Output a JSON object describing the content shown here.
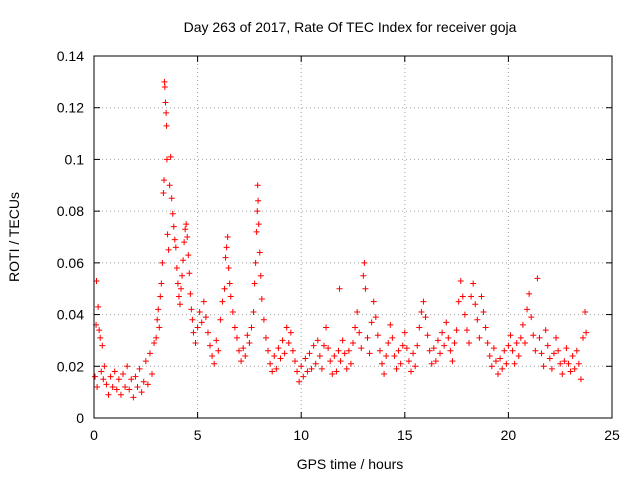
{
  "chart_data": {
    "type": "scatter",
    "title": "Day 263 of 2017, Rate Of TEC Index for receiver goja",
    "xlabel": "GPS time / hours",
    "ylabel": "ROTI / TECUs",
    "xlim": [
      0,
      25
    ],
    "ylim": [
      0,
      0.14
    ],
    "xticks": [
      0,
      5,
      10,
      15,
      20,
      25
    ],
    "xtick_labels": [
      "0",
      "5",
      "10",
      "15",
      "20",
      "25"
    ],
    "yticks": [
      0,
      0.02,
      0.04,
      0.06,
      0.08,
      0.1,
      0.12,
      0.14
    ],
    "ytick_labels": [
      "0",
      "0.02",
      "0.04",
      "0.06",
      "0.08",
      "0.1",
      "0.12",
      "0.14"
    ],
    "grid": true,
    "marker": "plus",
    "color": "#ff0000",
    "series": [
      {
        "points": [
          [
            0.05,
            0.016
          ],
          [
            0.1,
            0.036
          ],
          [
            0.12,
            0.053
          ],
          [
            0.15,
            0.012
          ],
          [
            0.2,
            0.043
          ],
          [
            0.25,
            0.034
          ],
          [
            0.3,
            0.031
          ],
          [
            0.35,
            0.018
          ],
          [
            0.4,
            0.028
          ],
          [
            0.45,
            0.015
          ],
          [
            0.5,
            0.02
          ],
          [
            0.6,
            0.013
          ],
          [
            0.7,
            0.009
          ],
          [
            0.8,
            0.016
          ],
          [
            0.9,
            0.012
          ],
          [
            1.0,
            0.018
          ],
          [
            1.1,
            0.011
          ],
          [
            1.2,
            0.015
          ],
          [
            1.3,
            0.009
          ],
          [
            1.4,
            0.017
          ],
          [
            1.5,
            0.012
          ],
          [
            1.6,
            0.02
          ],
          [
            1.7,
            0.011
          ],
          [
            1.8,
            0.015
          ],
          [
            1.9,
            0.008
          ],
          [
            2.0,
            0.016
          ],
          [
            2.1,
            0.012
          ],
          [
            2.2,
            0.019
          ],
          [
            2.3,
            0.01
          ],
          [
            2.4,
            0.014
          ],
          [
            2.5,
            0.022
          ],
          [
            2.6,
            0.013
          ],
          [
            2.7,
            0.025
          ],
          [
            2.8,
            0.017
          ],
          [
            2.9,
            0.029
          ],
          [
            3.0,
            0.031
          ],
          [
            3.05,
            0.038
          ],
          [
            3.1,
            0.042
          ],
          [
            3.15,
            0.035
          ],
          [
            3.2,
            0.047
          ],
          [
            3.25,
            0.052
          ],
          [
            3.3,
            0.06
          ],
          [
            3.35,
            0.087
          ],
          [
            3.38,
            0.092
          ],
          [
            3.4,
            0.13
          ],
          [
            3.42,
            0.128
          ],
          [
            3.45,
            0.122
          ],
          [
            3.48,
            0.118
          ],
          [
            3.5,
            0.113
          ],
          [
            3.52,
            0.1
          ],
          [
            3.55,
            0.071
          ],
          [
            3.6,
            0.065
          ],
          [
            3.65,
            0.09
          ],
          [
            3.7,
            0.101
          ],
          [
            3.75,
            0.085
          ],
          [
            3.8,
            0.079
          ],
          [
            3.85,
            0.074
          ],
          [
            3.9,
            0.069
          ],
          [
            3.95,
            0.066
          ],
          [
            4.0,
            0.058
          ],
          [
            4.05,
            0.052
          ],
          [
            4.1,
            0.047
          ],
          [
            4.15,
            0.044
          ],
          [
            4.2,
            0.05
          ],
          [
            4.25,
            0.055
          ],
          [
            4.3,
            0.061
          ],
          [
            4.35,
            0.068
          ],
          [
            4.4,
            0.073
          ],
          [
            4.45,
            0.075
          ],
          [
            4.5,
            0.07
          ],
          [
            4.55,
            0.063
          ],
          [
            4.6,
            0.056
          ],
          [
            4.65,
            0.048
          ],
          [
            4.7,
            0.042
          ],
          [
            4.75,
            0.038
          ],
          [
            4.8,
            0.033
          ],
          [
            4.9,
            0.029
          ],
          [
            5.0,
            0.035
          ],
          [
            5.1,
            0.041
          ],
          [
            5.2,
            0.037
          ],
          [
            5.3,
            0.045
          ],
          [
            5.4,
            0.039
          ],
          [
            5.5,
            0.033
          ],
          [
            5.6,
            0.028
          ],
          [
            5.7,
            0.024
          ],
          [
            5.8,
            0.021
          ],
          [
            5.9,
            0.03
          ],
          [
            6.0,
            0.026
          ],
          [
            6.1,
            0.038
          ],
          [
            6.2,
            0.045
          ],
          [
            6.3,
            0.05
          ],
          [
            6.35,
            0.062
          ],
          [
            6.4,
            0.066
          ],
          [
            6.45,
            0.07
          ],
          [
            6.5,
            0.058
          ],
          [
            6.55,
            0.052
          ],
          [
            6.6,
            0.047
          ],
          [
            6.7,
            0.041
          ],
          [
            6.8,
            0.035
          ],
          [
            6.9,
            0.031
          ],
          [
            7.0,
            0.026
          ],
          [
            7.1,
            0.022
          ],
          [
            7.2,
            0.027
          ],
          [
            7.3,
            0.024
          ],
          [
            7.4,
            0.032
          ],
          [
            7.5,
            0.029
          ],
          [
            7.6,
            0.035
          ],
          [
            7.7,
            0.041
          ],
          [
            7.75,
            0.052
          ],
          [
            7.8,
            0.06
          ],
          [
            7.85,
            0.072
          ],
          [
            7.88,
            0.08
          ],
          [
            7.9,
            0.09
          ],
          [
            7.92,
            0.084
          ],
          [
            7.95,
            0.075
          ],
          [
            8.0,
            0.064
          ],
          [
            8.05,
            0.055
          ],
          [
            8.1,
            0.046
          ],
          [
            8.2,
            0.038
          ],
          [
            8.3,
            0.031
          ],
          [
            8.4,
            0.026
          ],
          [
            8.5,
            0.021
          ],
          [
            8.6,
            0.018
          ],
          [
            8.7,
            0.024
          ],
          [
            8.8,
            0.019
          ],
          [
            8.9,
            0.027
          ],
          [
            9.0,
            0.023
          ],
          [
            9.1,
            0.03
          ],
          [
            9.2,
            0.025
          ],
          [
            9.3,
            0.035
          ],
          [
            9.4,
            0.029
          ],
          [
            9.5,
            0.033
          ],
          [
            9.6,
            0.026
          ],
          [
            9.7,
            0.022
          ],
          [
            9.8,
            0.018
          ],
          [
            9.9,
            0.014
          ],
          [
            10.0,
            0.02
          ],
          [
            10.1,
            0.016
          ],
          [
            10.2,
            0.023
          ],
          [
            10.3,
            0.018
          ],
          [
            10.4,
            0.025
          ],
          [
            10.5,
            0.019
          ],
          [
            10.6,
            0.028
          ],
          [
            10.7,
            0.021
          ],
          [
            10.8,
            0.03
          ],
          [
            10.9,
            0.024
          ],
          [
            11.0,
            0.019
          ],
          [
            11.1,
            0.028
          ],
          [
            11.2,
            0.035
          ],
          [
            11.3,
            0.027
          ],
          [
            11.4,
            0.022
          ],
          [
            11.5,
            0.017
          ],
          [
            11.6,
            0.024
          ],
          [
            11.7,
            0.018
          ],
          [
            11.8,
            0.026
          ],
          [
            11.85,
            0.05
          ],
          [
            11.9,
            0.022
          ],
          [
            12.0,
            0.03
          ],
          [
            12.1,
            0.025
          ],
          [
            12.2,
            0.019
          ],
          [
            12.3,
            0.026
          ],
          [
            12.4,
            0.021
          ],
          [
            12.5,
            0.029
          ],
          [
            12.6,
            0.035
          ],
          [
            12.7,
            0.041
          ],
          [
            12.8,
            0.033
          ],
          [
            12.9,
            0.027
          ],
          [
            13.0,
            0.055
          ],
          [
            13.05,
            0.06
          ],
          [
            13.1,
            0.05
          ],
          [
            13.2,
            0.031
          ],
          [
            13.3,
            0.025
          ],
          [
            13.4,
            0.037
          ],
          [
            13.5,
            0.045
          ],
          [
            13.6,
            0.039
          ],
          [
            13.7,
            0.032
          ],
          [
            13.8,
            0.026
          ],
          [
            13.9,
            0.021
          ],
          [
            14.0,
            0.017
          ],
          [
            14.1,
            0.024
          ],
          [
            14.2,
            0.029
          ],
          [
            14.3,
            0.036
          ],
          [
            14.4,
            0.031
          ],
          [
            14.5,
            0.024
          ],
          [
            14.6,
            0.019
          ],
          [
            14.7,
            0.026
          ],
          [
            14.8,
            0.021
          ],
          [
            14.9,
            0.028
          ],
          [
            15.0,
            0.033
          ],
          [
            15.1,
            0.027
          ],
          [
            15.2,
            0.022
          ],
          [
            15.3,
            0.018
          ],
          [
            15.4,
            0.025
          ],
          [
            15.5,
            0.02
          ],
          [
            15.6,
            0.028
          ],
          [
            15.7,
            0.035
          ],
          [
            15.8,
            0.041
          ],
          [
            15.9,
            0.045
          ],
          [
            16.0,
            0.039
          ],
          [
            16.1,
            0.032
          ],
          [
            16.2,
            0.026
          ],
          [
            16.3,
            0.021
          ],
          [
            16.4,
            0.027
          ],
          [
            16.5,
            0.022
          ],
          [
            16.6,
            0.03
          ],
          [
            16.7,
            0.025
          ],
          [
            16.8,
            0.033
          ],
          [
            16.9,
            0.028
          ],
          [
            17.0,
            0.037
          ],
          [
            17.1,
            0.031
          ],
          [
            17.2,
            0.026
          ],
          [
            17.3,
            0.022
          ],
          [
            17.4,
            0.029
          ],
          [
            17.5,
            0.034
          ],
          [
            17.6,
            0.045
          ],
          [
            17.7,
            0.053
          ],
          [
            17.8,
            0.047
          ],
          [
            17.9,
            0.04
          ],
          [
            18.0,
            0.034
          ],
          [
            18.1,
            0.029
          ],
          [
            18.2,
            0.047
          ],
          [
            18.3,
            0.052
          ],
          [
            18.4,
            0.044
          ],
          [
            18.5,
            0.038
          ],
          [
            18.6,
            0.031
          ],
          [
            18.7,
            0.047
          ],
          [
            18.8,
            0.041
          ],
          [
            18.9,
            0.035
          ],
          [
            19.0,
            0.029
          ],
          [
            19.1,
            0.024
          ],
          [
            19.2,
            0.02
          ],
          [
            19.3,
            0.027
          ],
          [
            19.4,
            0.022
          ],
          [
            19.5,
            0.017
          ],
          [
            19.6,
            0.023
          ],
          [
            19.7,
            0.019
          ],
          [
            19.8,
            0.026
          ],
          [
            19.9,
            0.021
          ],
          [
            20.0,
            0.028
          ],
          [
            20.1,
            0.032
          ],
          [
            20.2,
            0.026
          ],
          [
            20.3,
            0.021
          ],
          [
            20.4,
            0.029
          ],
          [
            20.5,
            0.024
          ],
          [
            20.6,
            0.031
          ],
          [
            20.7,
            0.036
          ],
          [
            20.8,
            0.029
          ],
          [
            20.9,
            0.042
          ],
          [
            21.0,
            0.048
          ],
          [
            21.1,
            0.039
          ],
          [
            21.2,
            0.032
          ],
          [
            21.3,
            0.026
          ],
          [
            21.4,
            0.054
          ],
          [
            21.5,
            0.031
          ],
          [
            21.6,
            0.025
          ],
          [
            21.7,
            0.02
          ],
          [
            21.8,
            0.034
          ],
          [
            21.9,
            0.028
          ],
          [
            22.0,
            0.023
          ],
          [
            22.1,
            0.019
          ],
          [
            22.2,
            0.025
          ],
          [
            22.3,
            0.031
          ],
          [
            22.4,
            0.026
          ],
          [
            22.5,
            0.021
          ],
          [
            22.6,
            0.017
          ],
          [
            22.7,
            0.022
          ],
          [
            22.8,
            0.027
          ],
          [
            22.9,
            0.021
          ],
          [
            23.0,
            0.018
          ],
          [
            23.1,
            0.024
          ],
          [
            23.2,
            0.019
          ],
          [
            23.3,
            0.026
          ],
          [
            23.4,
            0.021
          ],
          [
            23.5,
            0.015
          ],
          [
            23.6,
            0.031
          ],
          [
            23.7,
            0.041
          ],
          [
            23.75,
            0.033
          ]
        ]
      }
    ]
  }
}
